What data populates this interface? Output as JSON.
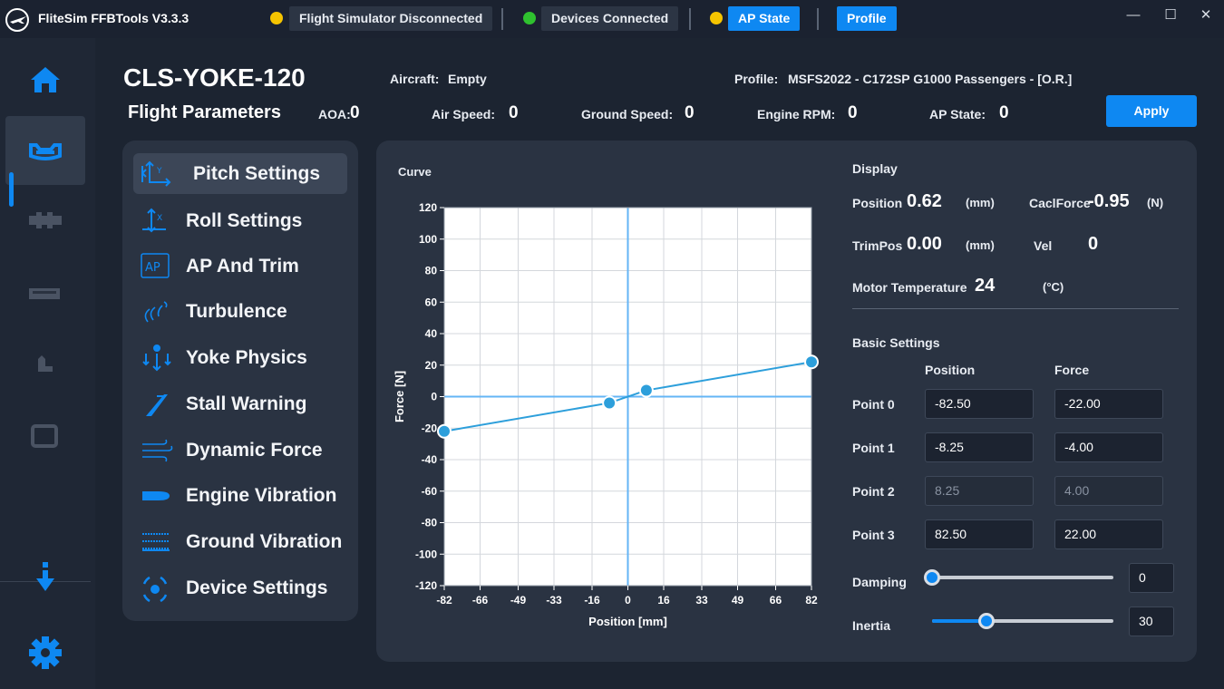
{
  "window": {
    "title": "FliteSim FFBTools V3.3.3",
    "minimize": "—",
    "maximize": "☐",
    "close": "✕"
  },
  "status": {
    "sim": {
      "label": "Flight Simulator Disconnected",
      "color": "#f5c400"
    },
    "devices": {
      "label": "Devices Connected",
      "color": "#2fc12f"
    },
    "ap": {
      "label": "AP State",
      "color": "#f5c400"
    },
    "profile_button": "Profile"
  },
  "nav": {
    "items": [
      "home-icon",
      "yoke-icon",
      "throttle-quadrant-icon",
      "panel-icon",
      "pedal-icon",
      "display-icon",
      "download-icon",
      "gear-icon"
    ],
    "active": "yoke-icon",
    "accent": "#0e88f2"
  },
  "header": {
    "device": "CLS-YOKE-120",
    "section": "Flight Parameters",
    "aircraft_label": "Aircraft:",
    "aircraft_value": "Empty",
    "profile_label": "Profile:",
    "profile_value": "MSFS2022 - C172SP G1000 Passengers - [O.R.]",
    "aoa_label": "AOA:",
    "aoa_value": "0",
    "airspeed_label": "Air Speed:",
    "airspeed_value": "0",
    "groundspeed_label": "Ground Speed:",
    "groundspeed_value": "0",
    "rpm_label": "Engine RPM:",
    "rpm_value": "0",
    "apstate_label": "AP State:",
    "apstate_value": "0",
    "apply": "Apply"
  },
  "menu": {
    "items": [
      {
        "label": "Pitch Settings",
        "icon": "pitch-axis-icon"
      },
      {
        "label": "Roll Settings",
        "icon": "roll-axis-icon"
      },
      {
        "label": "AP And Trim",
        "icon": "ap-icon",
        "icon_text": "AP"
      },
      {
        "label": "Turbulence",
        "icon": "turbulence-icon"
      },
      {
        "label": "Yoke Physics",
        "icon": "yoke-physics-icon"
      },
      {
        "label": "Stall Warning",
        "icon": "stall-warning-icon"
      },
      {
        "label": "Dynamic Force",
        "icon": "dynamic-force-icon"
      },
      {
        "label": "Engine Vibration",
        "icon": "engine-vibration-icon"
      },
      {
        "label": "Ground Vibration",
        "icon": "ground-vibration-icon"
      },
      {
        "label": "Device Settings",
        "icon": "device-settings-icon"
      }
    ],
    "active_index": 0
  },
  "curve": {
    "title": "Curve"
  },
  "chart_data": {
    "type": "line",
    "x": [
      -82.5,
      -8.25,
      8.25,
      82.5
    ],
    "y": [
      -22,
      -4,
      4,
      22
    ],
    "xlabel": "Position [mm]",
    "ylabel": "Force [N]",
    "xlim": [
      -82,
      82
    ],
    "ylim": [
      -120,
      120
    ],
    "xticks": [
      -82,
      -66,
      -49,
      -33,
      -16,
      0,
      16,
      33,
      49,
      66,
      82
    ],
    "yticks": [
      120,
      100,
      80,
      60,
      40,
      20,
      0,
      -20,
      -40,
      -60,
      -80,
      -100,
      -120
    ],
    "grid": true,
    "line_color": "#2d9fdb",
    "axis_color": "#64b5f6"
  },
  "display": {
    "title": "Display",
    "position_label": "Position",
    "position_value": "0.62",
    "position_unit": "(mm)",
    "cacl_label": "CaclForce",
    "cacl_value": "-0.95",
    "cacl_unit": "(N)",
    "trimpos_label": "TrimPos",
    "trimpos_value": "0.00",
    "trimpos_unit": "(mm)",
    "vel_label": "Vel",
    "vel_value": "0",
    "motor_label": "Motor Temperature",
    "motor_value": "24",
    "motor_unit": "(°C)"
  },
  "basic": {
    "title": "Basic Settings",
    "col_position": "Position",
    "col_force": "Force",
    "points": [
      {
        "label": "Point 0",
        "position": "-82.50",
        "force": "-22.00"
      },
      {
        "label": "Point 1",
        "position": "-8.25",
        "force": "-4.00"
      },
      {
        "label": "Point 2",
        "position": "8.25",
        "force": "4.00"
      },
      {
        "label": "Point 3",
        "position": "82.50",
        "force": "22.00"
      }
    ],
    "damping_label": "Damping",
    "damping_value": "0",
    "damping_fraction": 0.0,
    "inertia_label": "Inertia",
    "inertia_value": "30",
    "inertia_fraction": 0.3
  }
}
